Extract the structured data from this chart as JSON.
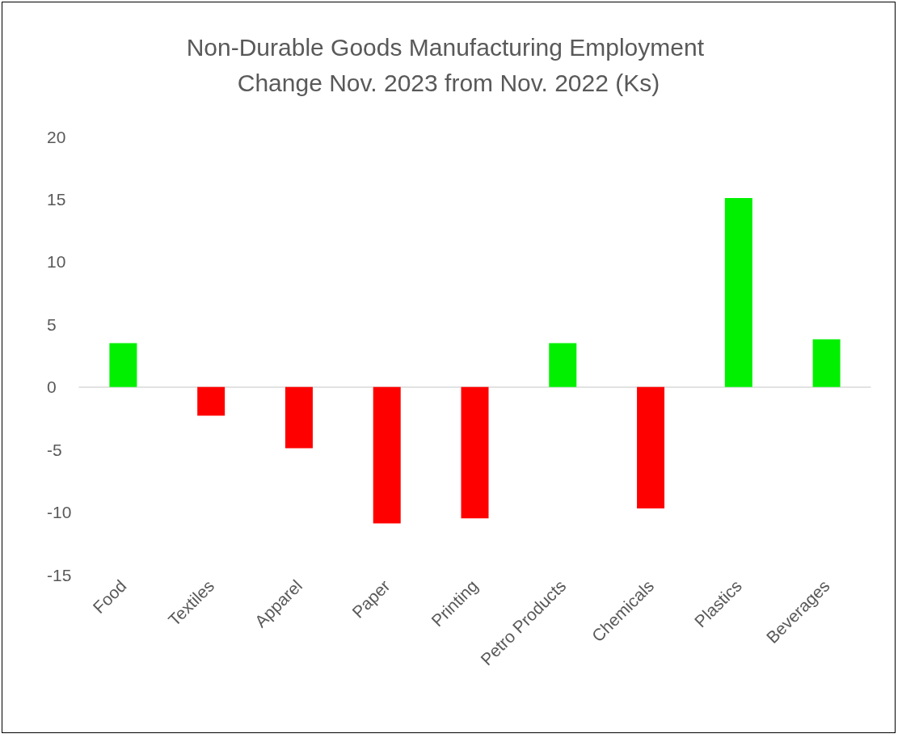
{
  "chart_data": {
    "type": "bar",
    "title": "Non-Durable Goods Manufacturing Employment Change Nov. 2023 from Nov. 2022 (Ks)",
    "categories": [
      "Food",
      "Textiles",
      "Apparel",
      "Paper",
      "Printing",
      "Petro Products",
      "Chemicals",
      "Plastics",
      "Beverages"
    ],
    "values": [
      3.5,
      -2.3,
      -4.9,
      -10.9,
      -10.5,
      3.5,
      -9.7,
      15.1,
      3.8
    ],
    "colors": [
      "#00f000",
      "#ff0000",
      "#ff0000",
      "#ff0000",
      "#ff0000",
      "#00f000",
      "#ff0000",
      "#00f000",
      "#00f000"
    ],
    "ylim": [
      -15,
      20
    ],
    "yticks": [
      -15,
      -10,
      -5,
      0,
      5,
      10,
      15,
      20
    ]
  }
}
